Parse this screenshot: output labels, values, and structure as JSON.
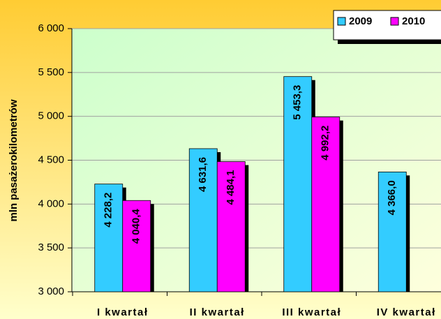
{
  "chart_data": {
    "type": "bar",
    "y_label": "mln pasażerokilometrów",
    "categories": [
      "I kwartał",
      "II kwartał",
      "III kwartał",
      "IV kwartał"
    ],
    "series": [
      {
        "name": "2009",
        "color": "#33ccff",
        "values": [
          4228.2,
          4631.6,
          5453.3,
          4366.0
        ],
        "value_labels": [
          "4 228,2",
          "4 631,6",
          "5 453,3",
          "4 366,0"
        ]
      },
      {
        "name": "2010",
        "color": "#ff00ff",
        "values": [
          4040.4,
          4484.1,
          4992.2,
          null
        ],
        "value_labels": [
          "4 040,4",
          "4 484,1",
          "4 992,2",
          null
        ]
      }
    ],
    "ylim": [
      3000,
      6000
    ],
    "yticks": [
      {
        "value": 3000,
        "label": "3 000"
      },
      {
        "value": 3500,
        "label": "3 500"
      },
      {
        "value": 4000,
        "label": "4 000"
      },
      {
        "value": 4500,
        "label": "4 500"
      },
      {
        "value": 5000,
        "label": "5 000"
      },
      {
        "value": 5500,
        "label": "5 500"
      },
      {
        "value": 6000,
        "label": "6 000"
      }
    ],
    "grid": true,
    "legend": "top-right"
  }
}
